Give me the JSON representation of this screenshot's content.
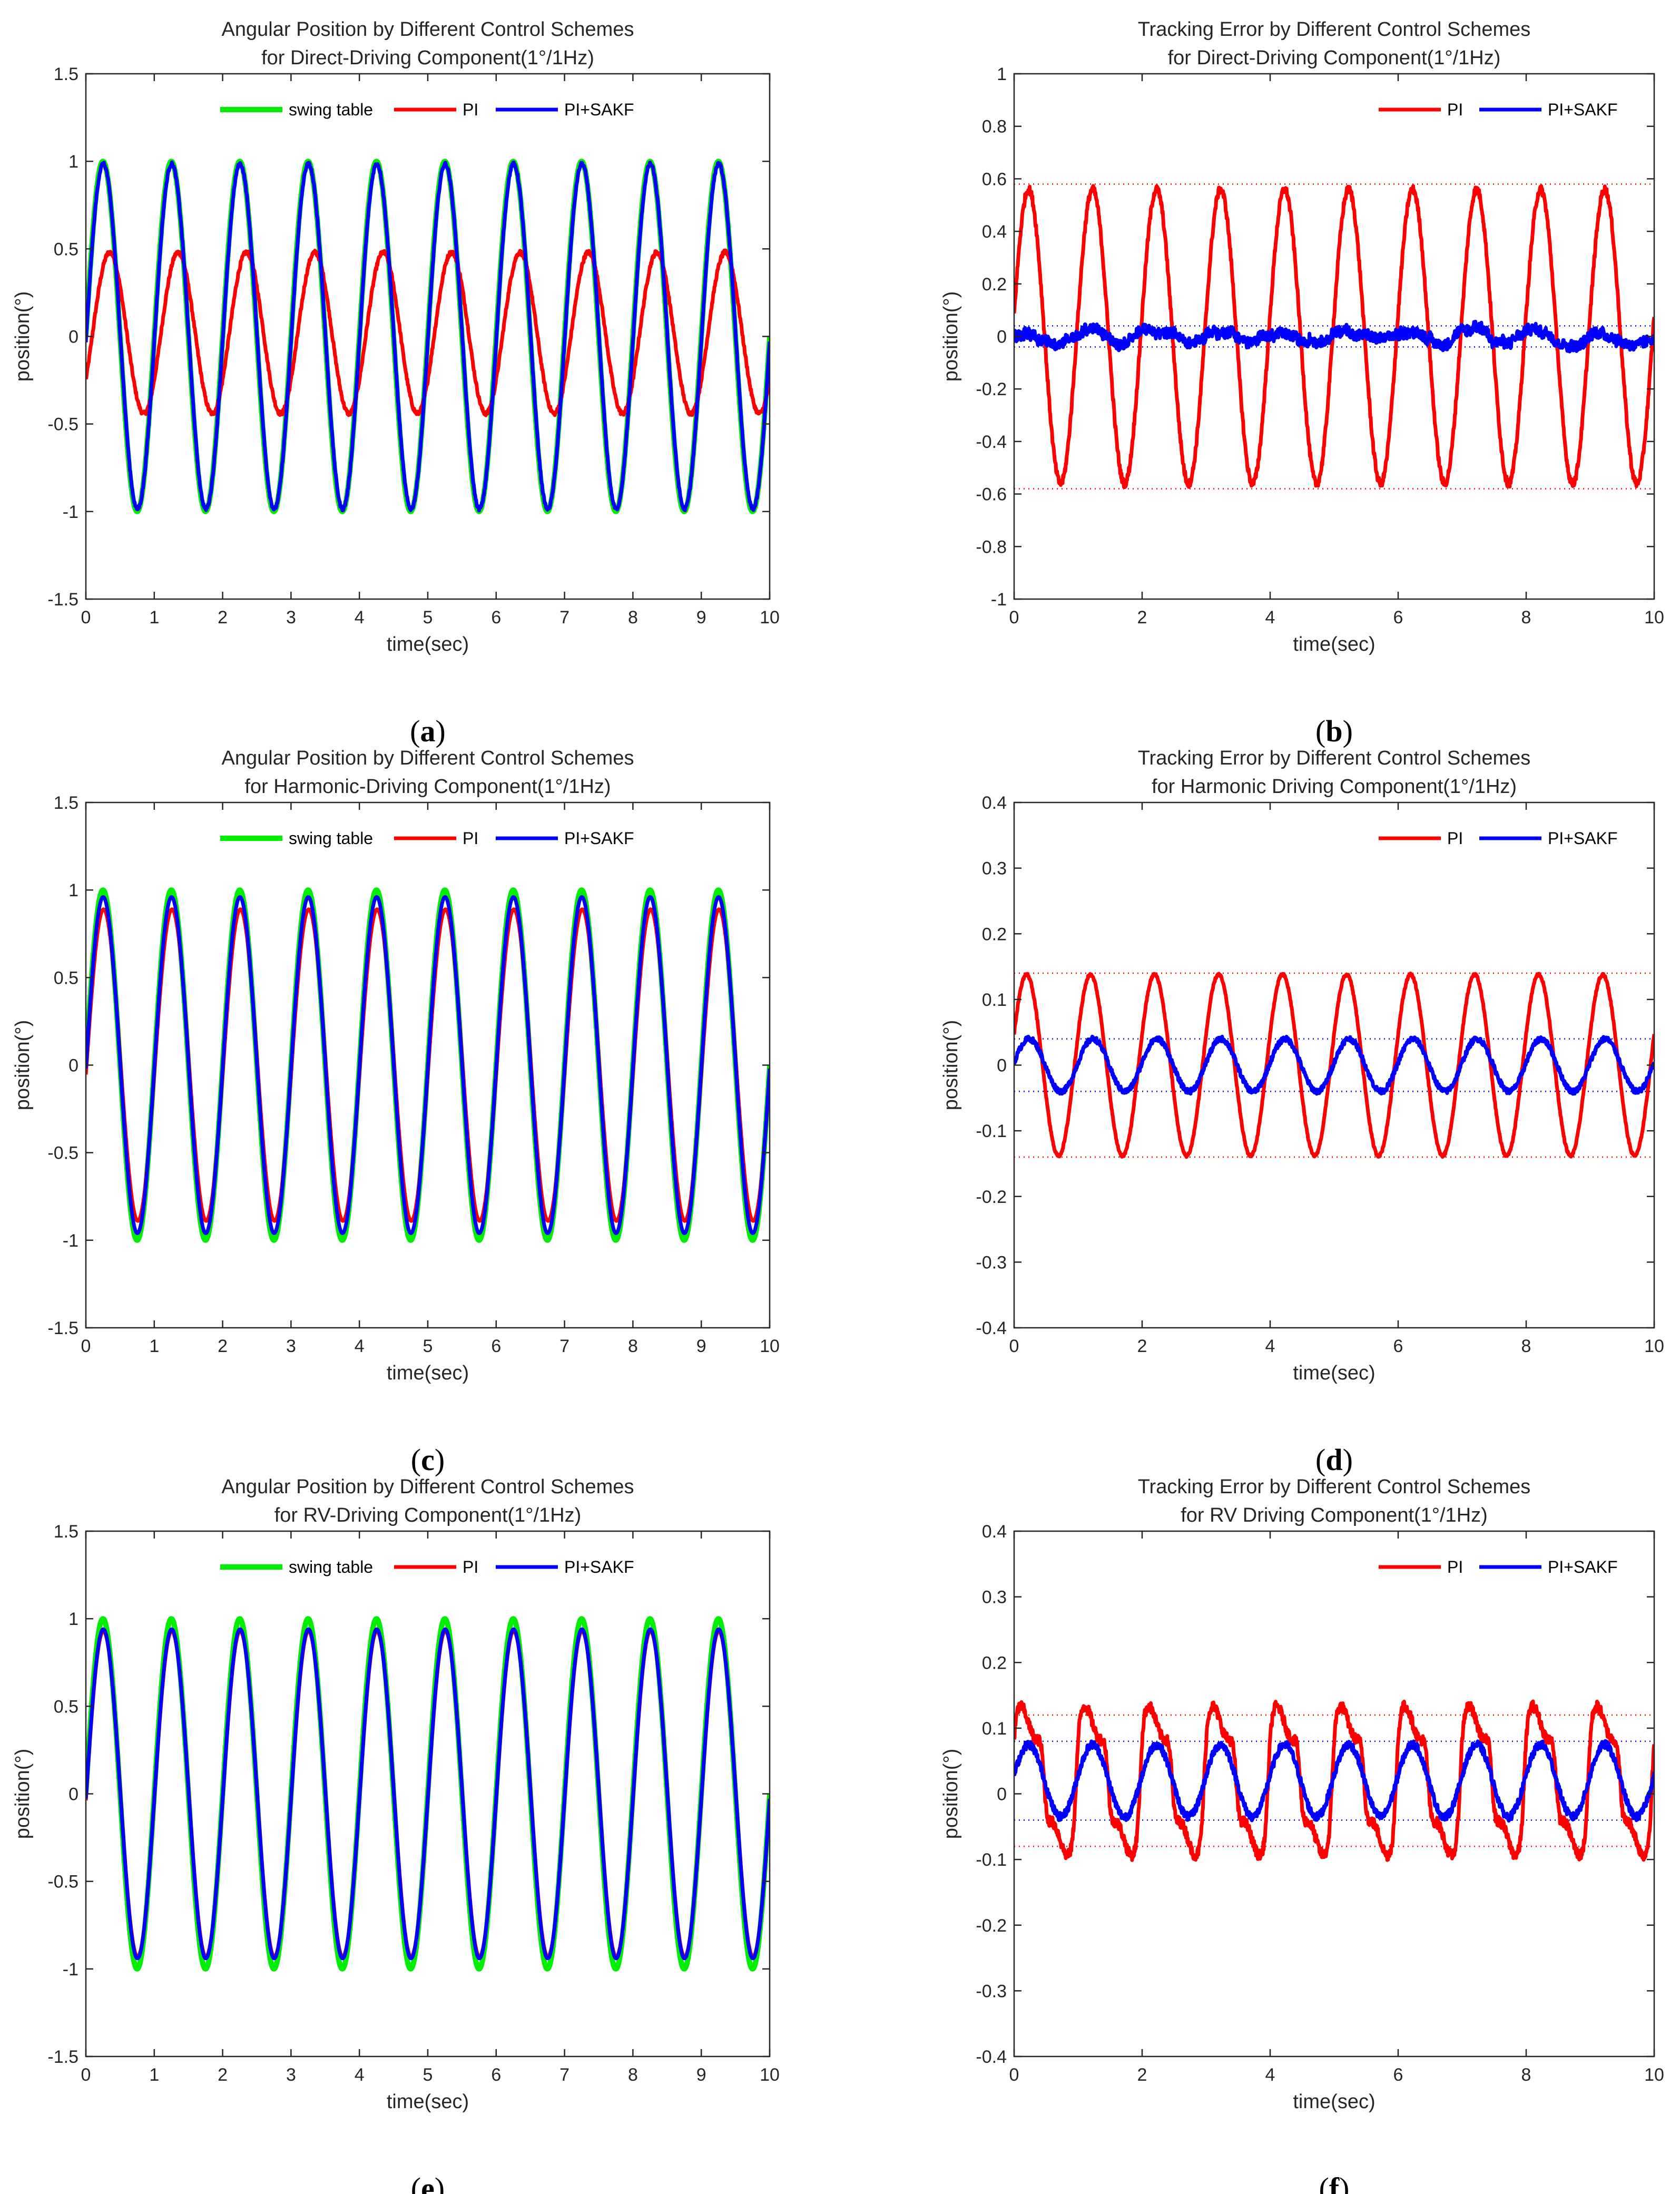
{
  "colors": {
    "swing_table": "#00ee00",
    "PI": "#ff0000",
    "PI_SAKF": "#0000ff",
    "axis": "#262626"
  },
  "chart_data": [
    {
      "id": "a",
      "caption_letter": "a",
      "type": "line",
      "kind": "position",
      "title_line1": "Angular Position by Different Control Schemes",
      "title_line2": "for Direct-Driving Component(1°/1Hz)",
      "xlabel": "time(sec)",
      "ylabel": "position(°)",
      "xlim": [
        0,
        10
      ],
      "ylim": [
        -1.5,
        1.5
      ],
      "xticks": [
        0,
        1,
        2,
        3,
        4,
        5,
        6,
        7,
        8,
        9,
        10
      ],
      "xtick_labels": [
        "0",
        "1",
        "2",
        "3",
        "4",
        "5",
        "6",
        "7",
        "8",
        "9",
        "10"
      ],
      "yticks": [
        -1.5,
        -1,
        -0.5,
        0,
        0.5,
        1,
        1.5
      ],
      "ytick_labels": [
        "-1.5",
        "-1",
        "-0.5",
        "0",
        "0.5",
        "1",
        "1.5"
      ],
      "legend": [
        "swing table",
        "PI",
        "PI+SAKF"
      ],
      "series": [
        {
          "name": "swing table",
          "color_key": "swing_table",
          "shape": "sine",
          "amplitude": 1.0,
          "phase": 0,
          "offset": 0,
          "noise": 0
        },
        {
          "name": "PI",
          "color_key": "PI",
          "shape": "sine",
          "amplitude": 0.46,
          "phase": -0.62,
          "offset": 0.02,
          "noise": 0.012
        },
        {
          "name": "PI+SAKF",
          "color_key": "PI_SAKF",
          "shape": "sine",
          "amplitude": 0.985,
          "phase": -0.03,
          "offset": 0,
          "noise": 0.01
        }
      ],
      "reference_lines": []
    },
    {
      "id": "b",
      "caption_letter": "b",
      "type": "line",
      "kind": "error",
      "title_line1": "Tracking Error by Different Control Schemes",
      "title_line2": "for Direct-Driving Component(1°/1Hz)",
      "xlabel": "time(sec)",
      "ylabel": "position(°)",
      "xlim": [
        0,
        10
      ],
      "ylim": [
        -1,
        1
      ],
      "xticks": [
        0,
        2,
        4,
        6,
        8,
        10
      ],
      "xtick_labels": [
        "0",
        "2",
        "4",
        "6",
        "8",
        "10"
      ],
      "yticks": [
        -1,
        -0.8,
        -0.6,
        -0.4,
        -0.2,
        0,
        0.2,
        0.4,
        0.6,
        0.8,
        1
      ],
      "ytick_labels": [
        "-1",
        "-0.8",
        "-0.6",
        "-0.4",
        "-0.2",
        "0",
        "0.2",
        "0.4",
        "0.6",
        "0.8",
        "1"
      ],
      "legend": [
        "PI",
        "PI+SAKF"
      ],
      "series": [
        {
          "name": "PI",
          "color_key": "PI",
          "shape": "sine",
          "amplitude": 0.56,
          "phase": 0.15,
          "offset": 0,
          "noise": 0.015
        },
        {
          "name": "PI+SAKF",
          "color_key": "PI_SAKF",
          "shape": "noise",
          "amplitude": 0.02,
          "phase": 0,
          "offset": 0,
          "noise": 0.02
        }
      ],
      "reference_lines": [
        {
          "y": 0.58,
          "color_key": "PI"
        },
        {
          "y": -0.58,
          "color_key": "PI"
        },
        {
          "y": 0.04,
          "color_key": "PI_SAKF"
        },
        {
          "y": -0.04,
          "color_key": "PI_SAKF"
        }
      ]
    },
    {
      "id": "c",
      "caption_letter": "c",
      "type": "line",
      "kind": "position",
      "title_line1": "Angular Position by Different Control Schemes",
      "title_line2": "for Harmonic-Driving Component(1°/1Hz)",
      "xlabel": "time(sec)",
      "ylabel": "position(°)",
      "xlim": [
        0,
        10
      ],
      "ylim": [
        -1.5,
        1.5
      ],
      "xticks": [
        0,
        1,
        2,
        3,
        4,
        5,
        6,
        7,
        8,
        9,
        10
      ],
      "xtick_labels": [
        "0",
        "1",
        "2",
        "3",
        "4",
        "5",
        "6",
        "7",
        "8",
        "9",
        "10"
      ],
      "yticks": [
        -1.5,
        -1,
        -0.5,
        0,
        0.5,
        1,
        1.5
      ],
      "ytick_labels": [
        "-1.5",
        "-1",
        "-0.5",
        "0",
        "0.5",
        "1",
        "1.5"
      ],
      "legend": [
        "swing table",
        "PI",
        "PI+SAKF"
      ],
      "series": [
        {
          "name": "swing table",
          "color_key": "swing_table",
          "shape": "sine",
          "amplitude": 1.0,
          "phase": 0,
          "offset": 0,
          "noise": 0
        },
        {
          "name": "PI",
          "color_key": "PI",
          "shape": "sine",
          "amplitude": 0.89,
          "phase": -0.06,
          "offset": 0,
          "noise": 0
        },
        {
          "name": "PI+SAKF",
          "color_key": "PI_SAKF",
          "shape": "sine",
          "amplitude": 0.96,
          "phase": -0.02,
          "offset": 0,
          "noise": 0
        }
      ],
      "reference_lines": []
    },
    {
      "id": "d",
      "caption_letter": "d",
      "type": "line",
      "kind": "error",
      "title_line1": "Tracking Error by Different Control Schemes",
      "title_line2": "for Harmonic Driving Component(1°/1Hz)",
      "xlabel": "time(sec)",
      "ylabel": "position(°)",
      "xlim": [
        0,
        10
      ],
      "ylim": [
        -0.4,
        0.4
      ],
      "xticks": [
        0,
        2,
        4,
        6,
        8,
        10
      ],
      "xtick_labels": [
        "0",
        "2",
        "4",
        "6",
        "8",
        "10"
      ],
      "yticks": [
        -0.4,
        -0.3,
        -0.2,
        -0.1,
        0,
        0.1,
        0.2,
        0.3,
        0.4
      ],
      "ytick_labels": [
        "-0.4",
        "-0.3",
        "-0.2",
        "-0.1",
        "0",
        "0.1",
        "0.2",
        "0.3",
        "0.4"
      ],
      "legend": [
        "PI",
        "PI+SAKF"
      ],
      "series": [
        {
          "name": "PI",
          "color_key": "PI",
          "shape": "sine",
          "amplitude": 0.138,
          "phase": 0.35,
          "offset": 0,
          "noise": 0.002
        },
        {
          "name": "PI+SAKF",
          "color_key": "PI_SAKF",
          "shape": "sine",
          "amplitude": 0.04,
          "phase": 0.1,
          "offset": 0,
          "noise": 0.004
        }
      ],
      "reference_lines": [
        {
          "y": 0.14,
          "color_key": "PI"
        },
        {
          "y": -0.14,
          "color_key": "PI"
        },
        {
          "y": 0.04,
          "color_key": "PI_SAKF"
        },
        {
          "y": -0.04,
          "color_key": "PI_SAKF"
        }
      ]
    },
    {
      "id": "e",
      "caption_letter": "e",
      "type": "line",
      "kind": "position",
      "title_line1": "Angular Position by Different Control Schemes",
      "title_line2": "for RV-Driving Component(1°/1Hz)",
      "xlabel": "time(sec)",
      "ylabel": "position(°)",
      "xlim": [
        0,
        10
      ],
      "ylim": [
        -1.5,
        1.5
      ],
      "xticks": [
        0,
        1,
        2,
        3,
        4,
        5,
        6,
        7,
        8,
        9,
        10
      ],
      "xtick_labels": [
        "0",
        "1",
        "2",
        "3",
        "4",
        "5",
        "6",
        "7",
        "8",
        "9",
        "10"
      ],
      "yticks": [
        -1.5,
        -1,
        -0.5,
        0,
        0.5,
        1,
        1.5
      ],
      "ytick_labels": [
        "-1.5",
        "-1",
        "-0.5",
        "0",
        "0.5",
        "1",
        "1.5"
      ],
      "legend": [
        "swing table",
        "PI",
        "PI+SAKF"
      ],
      "series": [
        {
          "name": "swing table",
          "color_key": "swing_table",
          "shape": "sine",
          "amplitude": 1.0,
          "phase": 0,
          "offset": 0,
          "noise": 0
        },
        {
          "name": "PI",
          "color_key": "PI",
          "shape": "sine",
          "amplitude": 0.93,
          "phase": -0.04,
          "offset": 0,
          "noise": 0
        },
        {
          "name": "PI+SAKF",
          "color_key": "PI_SAKF",
          "shape": "sine",
          "amplitude": 0.94,
          "phase": -0.03,
          "offset": 0,
          "noise": 0
        }
      ],
      "reference_lines": []
    },
    {
      "id": "f",
      "caption_letter": "f",
      "type": "line",
      "kind": "error",
      "title_line1": "Tracking Error by Different Control Schemes",
      "title_line2": "for RV Driving Component(1°/1Hz)",
      "xlabel": "time(sec)",
      "ylabel": "position(°)",
      "xlim": [
        0,
        10
      ],
      "ylim": [
        -0.4,
        0.4
      ],
      "xticks": [
        0,
        2,
        4,
        6,
        8,
        10
      ],
      "xtick_labels": [
        "0",
        "2",
        "4",
        "6",
        "8",
        "10"
      ],
      "yticks": [
        -0.4,
        -0.3,
        -0.2,
        -0.1,
        0,
        0.1,
        0.2,
        0.3,
        0.4
      ],
      "ytick_labels": [
        "-0.4",
        "-0.3",
        "-0.2",
        "-0.1",
        "0",
        "0.1",
        "0.2",
        "0.3",
        "0.4"
      ],
      "legend": [
        "PI",
        "PI+SAKF"
      ],
      "series": [
        {
          "name": "PI",
          "color_key": "PI",
          "shape": "square",
          "amplitude": 0.09,
          "phase": 0.2,
          "offset": 0.02,
          "noise": 0.008
        },
        {
          "name": "PI+SAKF",
          "color_key": "PI_SAKF",
          "shape": "sine",
          "amplitude": 0.055,
          "phase": 0.15,
          "offset": 0.02,
          "noise": 0.006
        }
      ],
      "reference_lines": [
        {
          "y": 0.12,
          "color_key": "PI"
        },
        {
          "y": -0.08,
          "color_key": "PI"
        },
        {
          "y": 0.08,
          "color_key": "PI_SAKF"
        },
        {
          "y": -0.04,
          "color_key": "PI_SAKF"
        }
      ]
    }
  ]
}
